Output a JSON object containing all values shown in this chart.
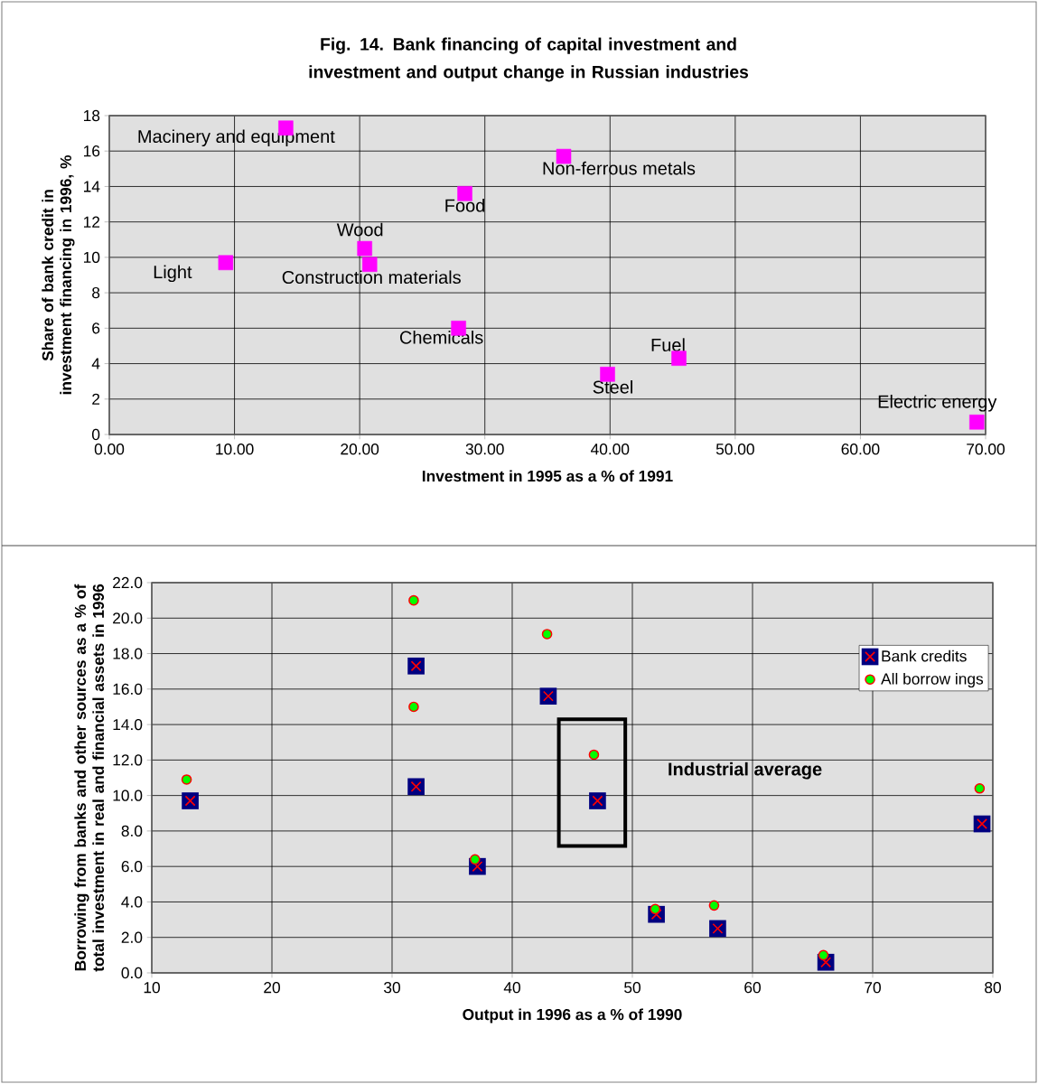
{
  "chart_data": [
    {
      "type": "scatter",
      "title": "Fig. 14. Bank financing of capital investment and investment and output change in Russian industries",
      "xlabel": "Investment in 1995 as a % of 1991",
      "ylabel": "Share of bank credit in investment financing in 1996, %",
      "series": [
        {
          "color": "#ff00ff",
          "marker": "square",
          "x": [
            14.1,
            9.3,
            20.4,
            20.8,
            28.4,
            27.9,
            36.3,
            39.8,
            45.5,
            69.3
          ],
          "values": [
            17.3,
            9.7,
            10.5,
            9.6,
            13.6,
            6.0,
            15.7,
            3.4,
            4.3,
            0.7
          ]
        }
      ],
      "annotations": [
        {
          "text": "Macinery and equipment",
          "x": 14.1,
          "y": 17.3
        },
        {
          "text": "Light",
          "x": 9.3,
          "y": 9.7
        },
        {
          "text": "Wood",
          "x": 20.4,
          "y": 10.5
        },
        {
          "text": "Construction materials",
          "x": 20.8,
          "y": 9.6
        },
        {
          "text": "Food",
          "x": 28.4,
          "y": 13.6
        },
        {
          "text": "Chemicals",
          "x": 27.9,
          "y": 6.0
        },
        {
          "text": "Non-ferrous metals",
          "x": 36.3,
          "y": 15.7
        },
        {
          "text": "Steel",
          "x": 39.8,
          "y": 3.4
        },
        {
          "text": "Fuel",
          "x": 45.5,
          "y": 4.3
        },
        {
          "text": "Electric energy",
          "x": 69.3,
          "y": 0.7
        }
      ],
      "xlim": [
        0,
        70
      ],
      "ylim": [
        0,
        18
      ],
      "xticks": [
        {
          "value": 0,
          "label": "0.00"
        },
        {
          "value": 10,
          "label": "10.00"
        },
        {
          "value": 20,
          "label": "20.00"
        },
        {
          "value": 30,
          "label": "30.00"
        },
        {
          "value": 40,
          "label": "40.00"
        },
        {
          "value": 50,
          "label": "50.00"
        },
        {
          "value": 60,
          "label": "60.00"
        },
        {
          "value": 70,
          "label": "70.00"
        }
      ],
      "yticks": [
        0,
        2,
        4,
        6,
        8,
        10,
        12,
        14,
        16,
        18
      ],
      "grid": true
    },
    {
      "type": "scatter",
      "xlabel": "Output in 1996 as a % of 1990",
      "ylabel": "Borrowing from banks and other sources as a % of total investment in real and financial assets in 1996",
      "series": [
        {
          "name": "Bank credits",
          "color": "#000080",
          "marker": "square",
          "x": [
            13.2,
            32.0,
            32.0,
            37.1,
            43.0,
            47.1,
            52.0,
            57.1,
            66.1,
            79.1
          ],
          "values": [
            9.7,
            17.3,
            10.5,
            6.0,
            15.6,
            9.7,
            3.3,
            2.5,
            0.6,
            8.4
          ]
        },
        {
          "name": "All borrow ings",
          "color": "#00ff00",
          "marker": "circle",
          "x": [
            12.9,
            31.8,
            31.8,
            36.9,
            42.9,
            46.8,
            51.9,
            56.8,
            65.9,
            78.9
          ],
          "values": [
            10.9,
            21.0,
            15.0,
            6.4,
            19.1,
            12.3,
            3.6,
            3.8,
            1.0,
            10.4
          ]
        }
      ],
      "annotations": [
        "Industrial average"
      ],
      "xlim": [
        10,
        80
      ],
      "ylim": [
        0,
        22
      ],
      "xticks": [
        10,
        20,
        30,
        40,
        50,
        60,
        70,
        80
      ],
      "yticks": [
        {
          "value": 0,
          "label": "0.0"
        },
        {
          "value": 2,
          "label": "2.0"
        },
        {
          "value": 4,
          "label": "4.0"
        },
        {
          "value": 6,
          "label": "6.0"
        },
        {
          "value": 8,
          "label": "8.0"
        },
        {
          "value": 10,
          "label": "10.0"
        },
        {
          "value": 12,
          "label": "12.0"
        },
        {
          "value": 14,
          "label": "14.0"
        },
        {
          "value": 16,
          "label": "16.0"
        },
        {
          "value": 18,
          "label": "18.0"
        },
        {
          "value": 20,
          "label": "20.0"
        },
        {
          "value": 22,
          "label": "22.0"
        }
      ],
      "grid": true,
      "legend": "top right"
    }
  ]
}
